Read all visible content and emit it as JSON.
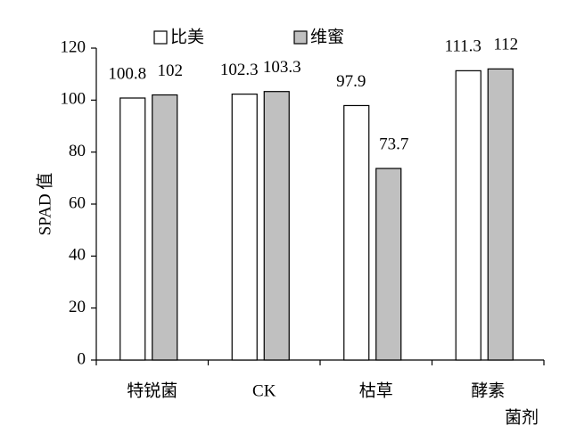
{
  "chart_data": {
    "type": "bar",
    "categories": [
      "特锐菌",
      "CK",
      "枯草",
      "酵素"
    ],
    "series": [
      {
        "name": "比美",
        "color": "#ffffff",
        "values": [
          100.8,
          102.3,
          97.9,
          111.3
        ]
      },
      {
        "name": "维蜜",
        "color": "#c0c0c0",
        "values": [
          102,
          103.3,
          73.7,
          112
        ]
      }
    ],
    "y_label": "SPAD 值",
    "x_label": "菌剂",
    "ylim": [
      0,
      120
    ],
    "yticks": [
      0,
      20,
      40,
      60,
      80,
      100,
      120
    ],
    "legend": "top",
    "grid": false
  }
}
